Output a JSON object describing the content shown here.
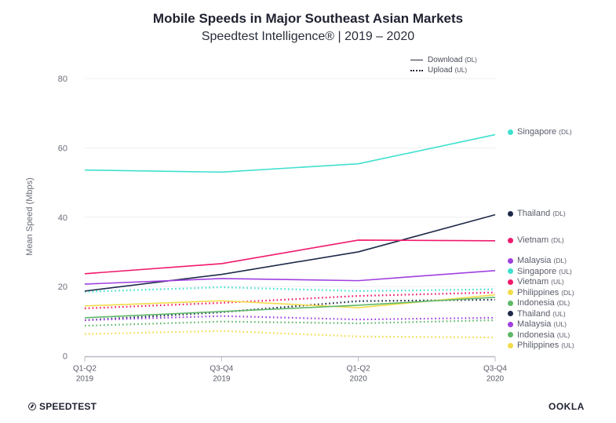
{
  "header": {
    "title": "Mobile Speeds in Major Southeast Asian Markets",
    "subtitle": "Speedtest Intelligence® | 2019 – 2020"
  },
  "line_legend": [
    {
      "label": "Download",
      "abbr": "(DL)",
      "style": "solid"
    },
    {
      "label": "Upload",
      "abbr": "(UL)",
      "style": "dotted"
    }
  ],
  "branding": {
    "left": "SPEEDTEST",
    "right": "OOKLA"
  },
  "chart_data": {
    "type": "line",
    "title": "Mobile Speeds in Major Southeast Asian Markets",
    "subtitle": "Speedtest Intelligence® | 2019 – 2020",
    "xlabel": "",
    "ylabel": "Mean Speed (Mbps)",
    "ylim": [
      0,
      80
    ],
    "yticks": [
      0,
      20,
      40,
      60,
      80
    ],
    "grid": true,
    "legend_position": "top-right",
    "categories": [
      [
        "Q1-Q2",
        "2019"
      ],
      [
        "Q3-Q4",
        "2019"
      ],
      [
        "Q1-Q2",
        "2020"
      ],
      [
        "Q3-Q4",
        "2020"
      ]
    ],
    "series": [
      {
        "name": "Singapore",
        "type": "DL",
        "color": "#3fe0cf",
        "values": [
          53.6,
          53.0,
          55.4,
          63.8
        ]
      },
      {
        "name": "Thailand",
        "type": "DL",
        "color": "#1e2a4a",
        "values": [
          18.7,
          23.5,
          30.0,
          40.7
        ]
      },
      {
        "name": "Vietnam",
        "type": "DL",
        "color": "#f0196b",
        "values": [
          23.7,
          26.6,
          33.4,
          33.2
        ]
      },
      {
        "name": "Malaysia",
        "type": "DL",
        "color": "#a040e0",
        "values": [
          20.7,
          22.3,
          21.7,
          24.6
        ]
      },
      {
        "name": "Singapore",
        "type": "UL",
        "color": "#3fe0cf",
        "values": [
          18.5,
          19.8,
          18.7,
          19.2
        ]
      },
      {
        "name": "Vietnam",
        "type": "UL",
        "color": "#f0196b",
        "values": [
          13.7,
          15.3,
          17.3,
          18.3
        ]
      },
      {
        "name": "Philippines",
        "type": "DL",
        "color": "#f2dc4a",
        "values": [
          14.4,
          15.9,
          13.9,
          17.6
        ]
      },
      {
        "name": "Indonesia",
        "type": "DL",
        "color": "#5fb86a",
        "values": [
          11.0,
          12.8,
          14.6,
          16.9
        ]
      },
      {
        "name": "Thailand",
        "type": "UL",
        "color": "#1e2a4a",
        "values": [
          10.3,
          12.6,
          15.8,
          16.2
        ]
      },
      {
        "name": "Malaysia",
        "type": "UL",
        "color": "#a040e0",
        "values": [
          10.3,
          11.5,
          10.5,
          11.0
        ]
      },
      {
        "name": "Indonesia",
        "type": "UL",
        "color": "#5fb86a",
        "values": [
          8.7,
          9.9,
          9.4,
          10.3
        ]
      },
      {
        "name": "Philippines",
        "type": "UL",
        "color": "#f2dc4a",
        "values": [
          6.3,
          7.2,
          5.6,
          5.3
        ]
      }
    ]
  }
}
